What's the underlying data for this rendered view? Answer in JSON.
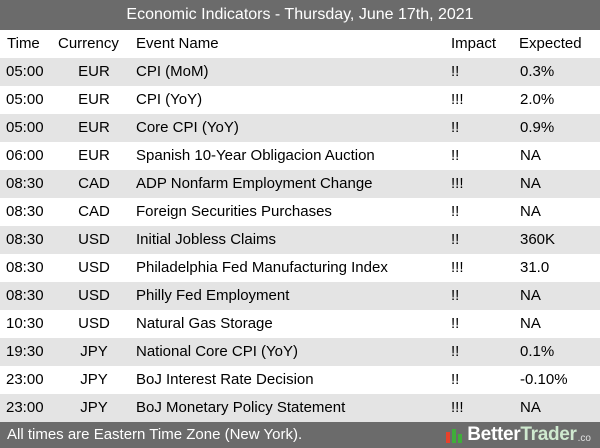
{
  "title": "Economic Indicators - Thursday, June 17th, 2021",
  "columns": {
    "time": "Time",
    "currency": "Currency",
    "event": "Event Name",
    "impact": "Impact",
    "expected": "Expected"
  },
  "rows": [
    {
      "time": "05:00",
      "currency": "EUR",
      "event": "CPI (MoM)",
      "impact": "!!",
      "expected": "0.3%"
    },
    {
      "time": "05:00",
      "currency": "EUR",
      "event": "CPI (YoY)",
      "impact": "!!!",
      "expected": "2.0%"
    },
    {
      "time": "05:00",
      "currency": "EUR",
      "event": "Core CPI (YoY)",
      "impact": "!!",
      "expected": "0.9%"
    },
    {
      "time": "06:00",
      "currency": "EUR",
      "event": "Spanish 10-Year Obligacion Auction",
      "impact": "!!",
      "expected": "NA"
    },
    {
      "time": "08:30",
      "currency": "CAD",
      "event": "ADP Nonfarm Employment Change",
      "impact": "!!!",
      "expected": "NA"
    },
    {
      "time": "08:30",
      "currency": "CAD",
      "event": "Foreign Securities Purchases",
      "impact": "!!",
      "expected": "NA"
    },
    {
      "time": "08:30",
      "currency": "USD",
      "event": "Initial Jobless Claims",
      "impact": "!!",
      "expected": "360K"
    },
    {
      "time": "08:30",
      "currency": "USD",
      "event": "Philadelphia Fed Manufacturing Index",
      "impact": "!!!",
      "expected": "31.0"
    },
    {
      "time": "08:30",
      "currency": "USD",
      "event": "Philly Fed Employment",
      "impact": "!!",
      "expected": "NA"
    },
    {
      "time": "10:30",
      "currency": "USD",
      "event": "Natural Gas Storage",
      "impact": "!!",
      "expected": "NA"
    },
    {
      "time": "19:30",
      "currency": "JPY",
      "event": "National Core CPI (YoY)",
      "impact": "!!",
      "expected": "0.1%"
    },
    {
      "time": "23:00",
      "currency": "JPY",
      "event": "BoJ Interest Rate Decision",
      "impact": "!!",
      "expected": "-0.10%"
    },
    {
      "time": "23:00",
      "currency": "JPY",
      "event": "BoJ Monetary Policy Statement",
      "impact": "!!!",
      "expected": "NA"
    }
  ],
  "footer": {
    "note": "All times are Eastern Time Zone (New York).",
    "brand_better": "Better",
    "brand_trader": "Trader",
    "brand_tail": ".co",
    "logo_icon": "bar-chart-logo-icon"
  },
  "colors": {
    "bar": "#6b6b6b",
    "stripe": "#e4e4e4",
    "logo_red": "#e8412b",
    "logo_green": "#3fae3a"
  }
}
